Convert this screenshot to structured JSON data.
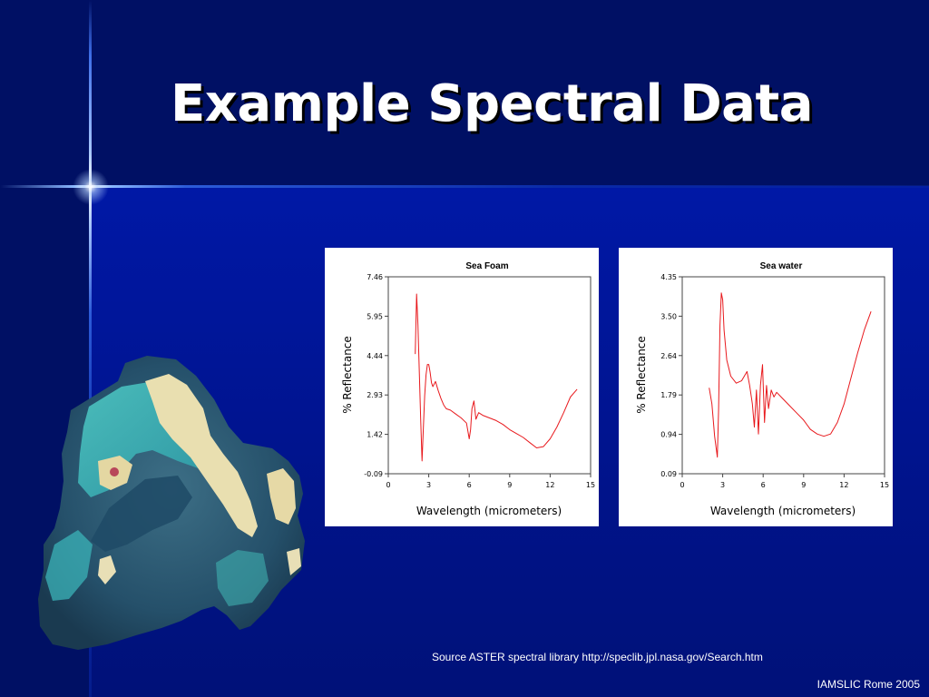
{
  "slide": {
    "title": "Example Spectral Data",
    "source": "Source ASTER spectral library http://speclib.jpl.nasa.gov/Search.htm",
    "footer": "IAMSLIC Rome 2005"
  },
  "colors": {
    "background": "#00137f",
    "line": "#e8191d",
    "title": "#ffffff"
  },
  "chart_data": [
    {
      "type": "line",
      "title": "Sea Foam",
      "xlabel": "Wavelength (micrometers)",
      "ylabel": "% Reflectance",
      "xlim": [
        0,
        15
      ],
      "ylim": [
        -0.09,
        7.46
      ],
      "xticks": [
        "0",
        "3",
        "6",
        "9",
        "12",
        "15"
      ],
      "yticks": [
        "-0.09",
        "1.42",
        "2.93",
        "4.44",
        "5.95",
        "7.46"
      ],
      "grid": false,
      "series": [
        {
          "x": [
            2.0,
            2.1,
            2.2,
            2.3,
            2.4,
            2.5,
            2.6,
            2.7,
            2.8,
            2.9,
            3.0,
            3.1,
            3.2,
            3.3,
            3.5,
            3.7,
            3.9,
            4.1,
            4.3,
            4.6,
            5.0,
            5.4,
            5.8,
            6.0,
            6.1,
            6.2,
            6.35,
            6.5,
            6.7,
            7.0,
            7.5,
            8.0,
            8.5,
            9.0,
            9.5,
            10.0,
            10.5,
            11.0,
            11.5,
            12.0,
            12.5,
            13.0,
            13.5,
            14.0
          ],
          "y": [
            4.5,
            6.8,
            5.6,
            3.8,
            2.0,
            0.4,
            1.7,
            2.9,
            3.7,
            4.1,
            4.1,
            3.8,
            3.4,
            3.25,
            3.45,
            3.1,
            2.8,
            2.55,
            2.4,
            2.35,
            2.2,
            2.05,
            1.85,
            1.25,
            1.6,
            2.4,
            2.7,
            2.0,
            2.25,
            2.15,
            2.05,
            1.95,
            1.8,
            1.6,
            1.45,
            1.3,
            1.1,
            0.9,
            0.95,
            1.25,
            1.7,
            2.25,
            2.85,
            3.15
          ]
        }
      ]
    },
    {
      "type": "line",
      "title": "Sea water",
      "xlabel": "Wavelength (micrometers)",
      "ylabel": "% Reflectance",
      "xlim": [
        0,
        15
      ],
      "ylim": [
        0.09,
        4.35
      ],
      "xticks": [
        "0",
        "3",
        "6",
        "9",
        "12",
        "15"
      ],
      "yticks": [
        "0.09",
        "0.94",
        "1.79",
        "2.64",
        "3.50",
        "4.35"
      ],
      "grid": false,
      "series": [
        {
          "x": [
            2.0,
            2.2,
            2.4,
            2.6,
            2.7,
            2.8,
            2.9,
            3.0,
            3.1,
            3.3,
            3.6,
            4.0,
            4.4,
            4.8,
            5.0,
            5.2,
            5.35,
            5.5,
            5.65,
            5.8,
            5.95,
            6.1,
            6.25,
            6.4,
            6.6,
            6.8,
            7.0,
            7.5,
            8.0,
            8.5,
            9.0,
            9.5,
            10.0,
            10.5,
            11.0,
            11.5,
            12.0,
            12.5,
            13.0,
            13.5,
            14.0
          ],
          "y": [
            1.95,
            1.6,
            0.9,
            0.45,
            1.5,
            3.3,
            4.0,
            3.85,
            3.2,
            2.55,
            2.2,
            2.05,
            2.1,
            2.3,
            2.0,
            1.6,
            1.1,
            1.9,
            0.95,
            2.0,
            2.45,
            1.2,
            2.0,
            1.5,
            1.9,
            1.75,
            1.85,
            1.7,
            1.55,
            1.4,
            1.25,
            1.05,
            0.95,
            0.9,
            0.95,
            1.2,
            1.6,
            2.15,
            2.7,
            3.2,
            3.6
          ]
        }
      ]
    }
  ]
}
